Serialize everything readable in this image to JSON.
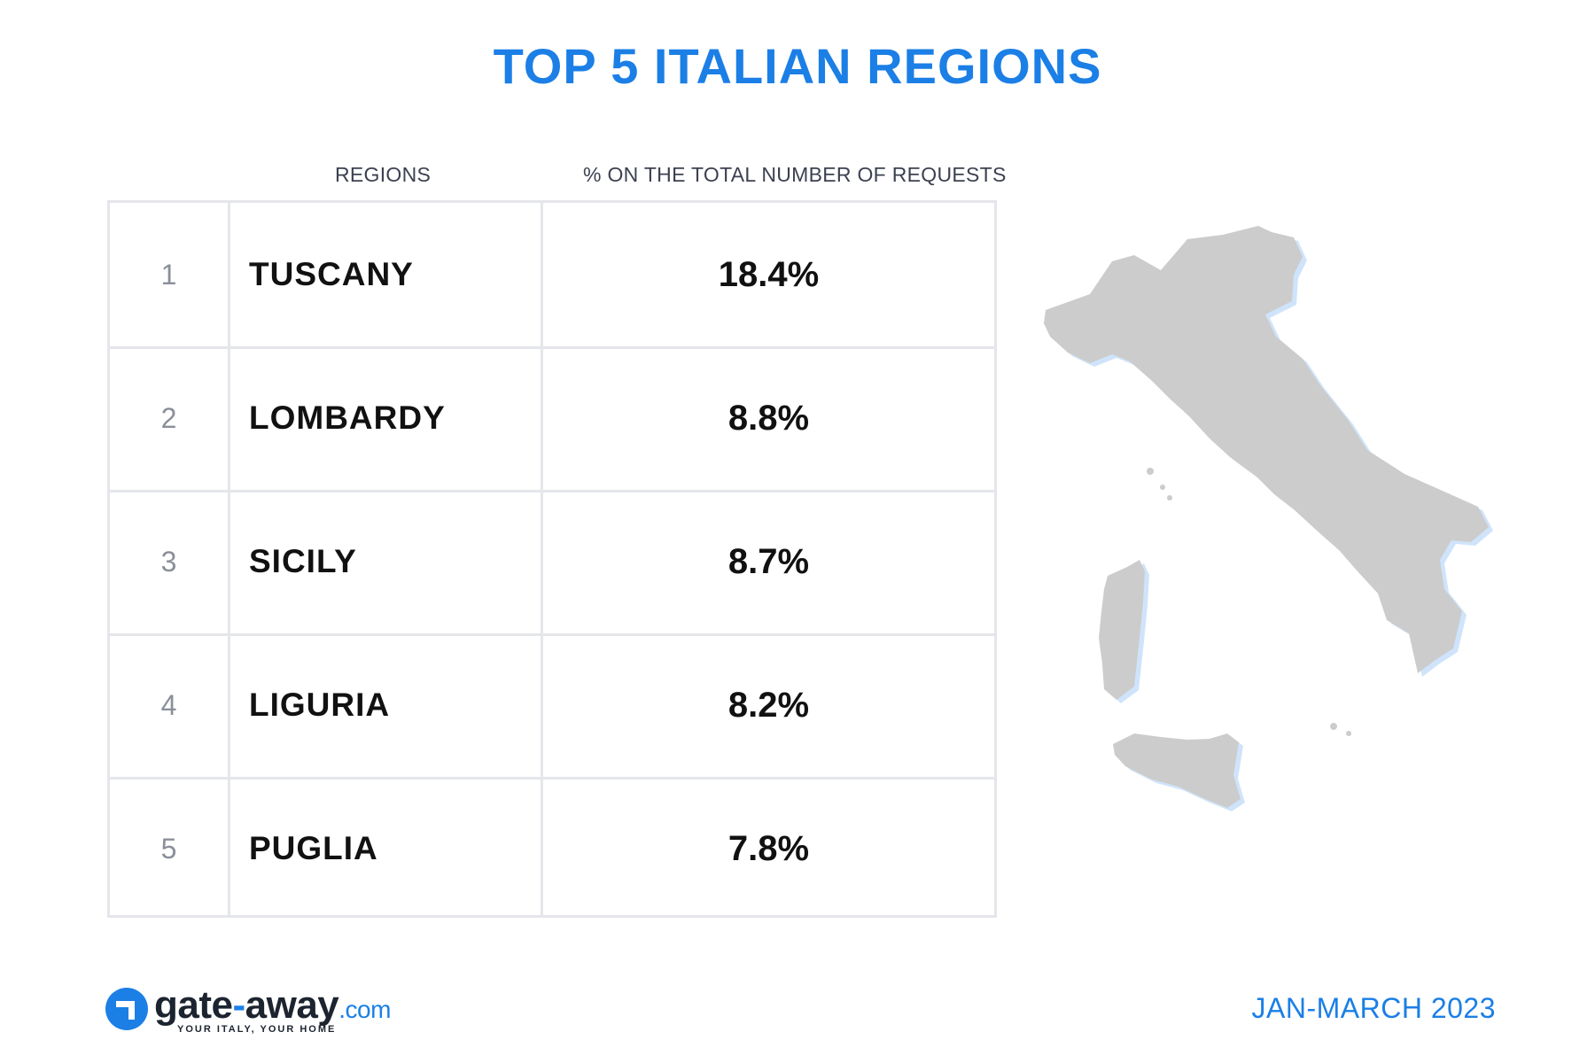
{
  "title": "TOP 5 ITALIAN REGIONS",
  "accent_color": "#1b7fe6",
  "chart_data": {
    "type": "table",
    "title": "TOP 5 ITALIAN REGIONS",
    "columns": [
      "REGIONS",
      "% ON THE TOTAL NUMBER OF REQUESTS"
    ],
    "rows": [
      {
        "rank": "1",
        "region": "TUSCANY",
        "percent": "18.4%",
        "value": 18.4
      },
      {
        "rank": "2",
        "region": "LOMBARDY",
        "percent": "8.8%",
        "value": 8.8
      },
      {
        "rank": "3",
        "region": "SICILY",
        "percent": "8.7%",
        "value": 8.7
      },
      {
        "rank": "4",
        "region": "LIGURIA",
        "percent": "8.2%",
        "value": 8.2
      },
      {
        "rank": "5",
        "region": "PUGLIA",
        "percent": "7.8%",
        "value": 7.8
      }
    ]
  },
  "map": {
    "icon": "italy-map-icon",
    "fill_color": "#cccccc",
    "shadow_color": "#cfe4fb"
  },
  "brand": {
    "name_part1": "gate",
    "name_dash": "-",
    "name_part2": "away",
    "tld": ".com",
    "tagline": "YOUR ITALY, YOUR HOME",
    "icon": "gate-away-logo-icon"
  },
  "period": "JAN-MARCH 2023"
}
